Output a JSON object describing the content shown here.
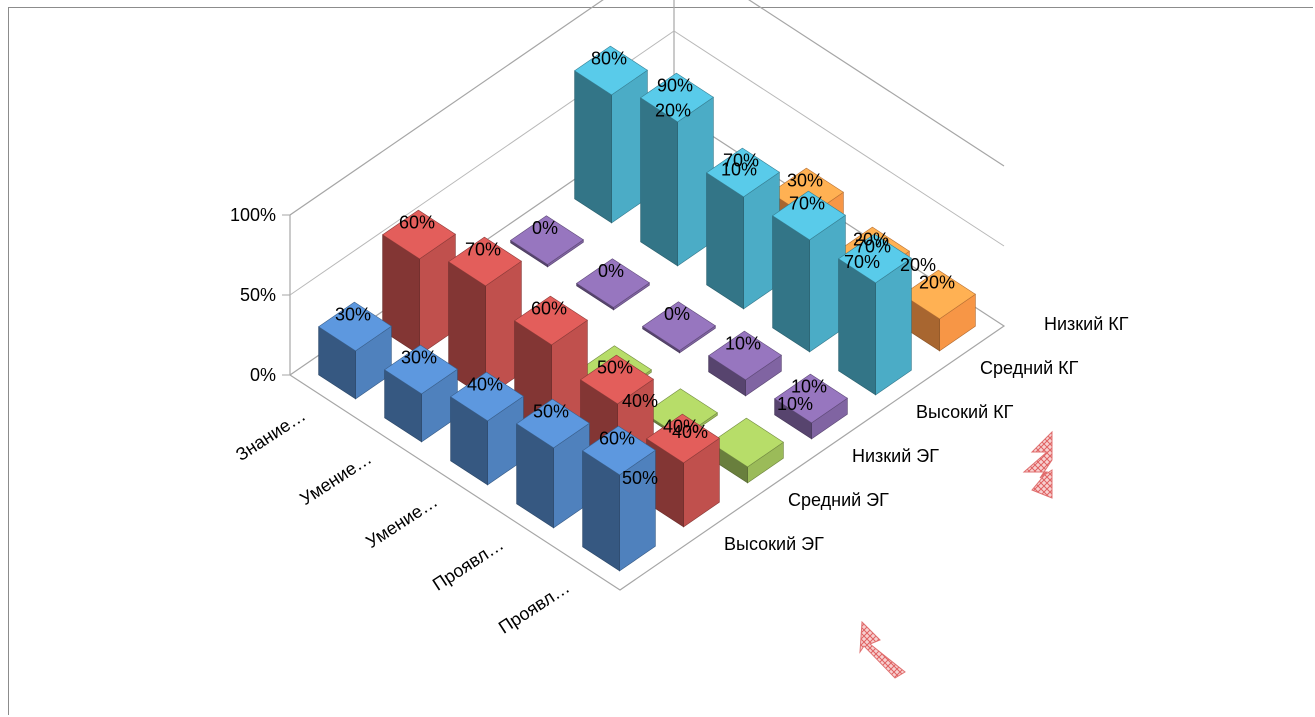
{
  "chart_data": {
    "type": "bar",
    "variant": "3d-column",
    "categories": [
      "Знание…",
      "Умение…",
      "Умение…",
      "Проявл…",
      "Проявл…"
    ],
    "series": [
      {
        "name": "Высокий ЭГ",
        "color": "#4f81bd",
        "values": [
          30,
          30,
          40,
          50,
          60
        ],
        "labels": [
          "30%",
          "30%",
          "40%",
          "50%",
          "60%"
        ]
      },
      {
        "name": "Средний ЭГ",
        "color": "#c0504d",
        "values": [
          60,
          70,
          60,
          50,
          40
        ],
        "labels": [
          "60%",
          "70%",
          "60%",
          "50%",
          "40%"
        ]
      },
      {
        "name": "Низкий ЭГ",
        "color": "#9bbb59",
        "values": [
          10,
          0,
          0,
          0,
          10
        ],
        "labels": [
          "",
          "",
          "",
          "",
          ""
        ]
      },
      {
        "name": "Высокий КГ",
        "color": "#8064a2",
        "values": [
          0,
          0,
          0,
          10,
          10
        ],
        "labels": [
          "0%",
          "0%",
          "0%",
          "10%",
          "10%"
        ]
      },
      {
        "name": "Средний КГ",
        "color": "#4bacc6",
        "values": [
          80,
          90,
          70,
          70,
          70
        ],
        "labels": [
          "80%",
          "90%",
          "70%",
          "70%",
          "70%"
        ]
      },
      {
        "name": "Низкий КГ",
        "color": "#f79646",
        "values": [
          20,
          10,
          30,
          20,
          20
        ],
        "labels": [
          "20%",
          "10%",
          "30%",
          "20%",
          "20%"
        ]
      }
    ],
    "extra_labels": [
      "50%",
      "40%",
      "40%",
      "10%",
      "70%",
      "20%"
    ],
    "z_tick_labels": [
      "100%",
      "50%",
      "0%"
    ],
    "ylim": [
      0,
      100
    ],
    "gridlines": true,
    "legend": "none",
    "title": "",
    "xlabel": "",
    "ylabel": ""
  }
}
